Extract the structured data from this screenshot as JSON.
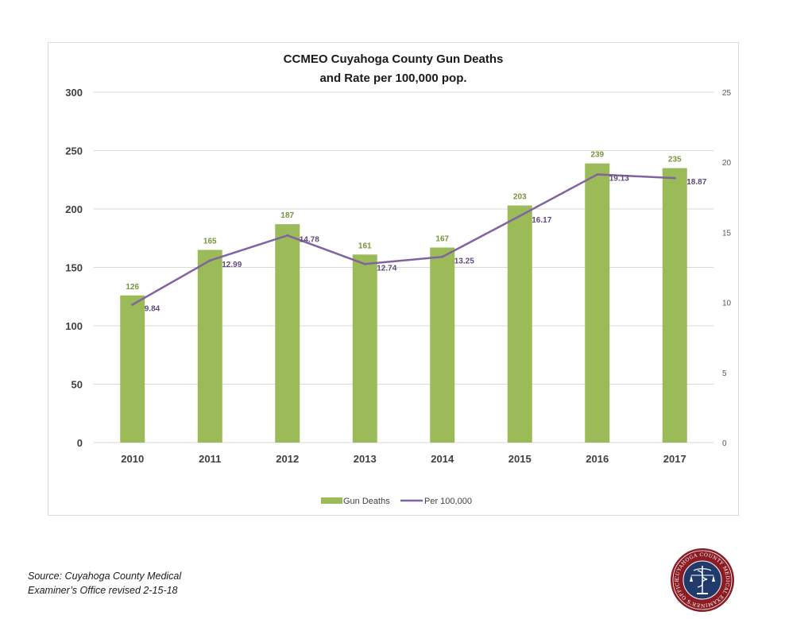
{
  "colors": {
    "bar": "#9bbb59",
    "line": "#8064a2",
    "grid": "#d9d9d9",
    "bar_label": "#77933c",
    "line_label": "#5f497a"
  },
  "chart_data": {
    "type": "bar",
    "title": "CCMEO Cuyahoga County Gun Deaths",
    "subtitle": "and Rate per 100,000 pop.",
    "categories": [
      "2010",
      "2011",
      "2012",
      "2013",
      "2014",
      "2015",
      "2016",
      "2017"
    ],
    "series": [
      {
        "name": "Gun Deaths",
        "type": "bar",
        "axis": "left",
        "values": [
          126,
          165,
          187,
          161,
          167,
          203,
          239,
          235
        ],
        "labels": [
          "126",
          "165",
          "187",
          "161",
          "167",
          "203",
          "239",
          "235"
        ]
      },
      {
        "name": "Per 100,000",
        "type": "line",
        "axis": "right",
        "values": [
          9.84,
          12.99,
          14.78,
          12.74,
          13.25,
          16.17,
          19.13,
          18.87
        ],
        "labels": [
          "9.84",
          "12.99",
          "14.78",
          "12.74",
          "13.25",
          "16.17",
          "19.13",
          "18.87"
        ]
      }
    ],
    "y_left": {
      "range": [
        0,
        300
      ],
      "ticks": [
        "0",
        "50",
        "100",
        "150",
        "200",
        "250",
        "300"
      ]
    },
    "y_right": {
      "range": [
        0,
        25
      ],
      "ticks": [
        "0",
        "5",
        "10",
        "15",
        "20",
        "25"
      ]
    },
    "grid": true,
    "legend": "bottom"
  },
  "footer": {
    "source_line1": "Source: Cuyahoga County Medical",
    "source_line2": "Examiner’s Office revised 2-15-18",
    "seal_text": "CUYAHOGA COUNTY MEDICAL EXAMINER'S OFFICE",
    "seal_icon": "caduceus-scales-icon"
  }
}
